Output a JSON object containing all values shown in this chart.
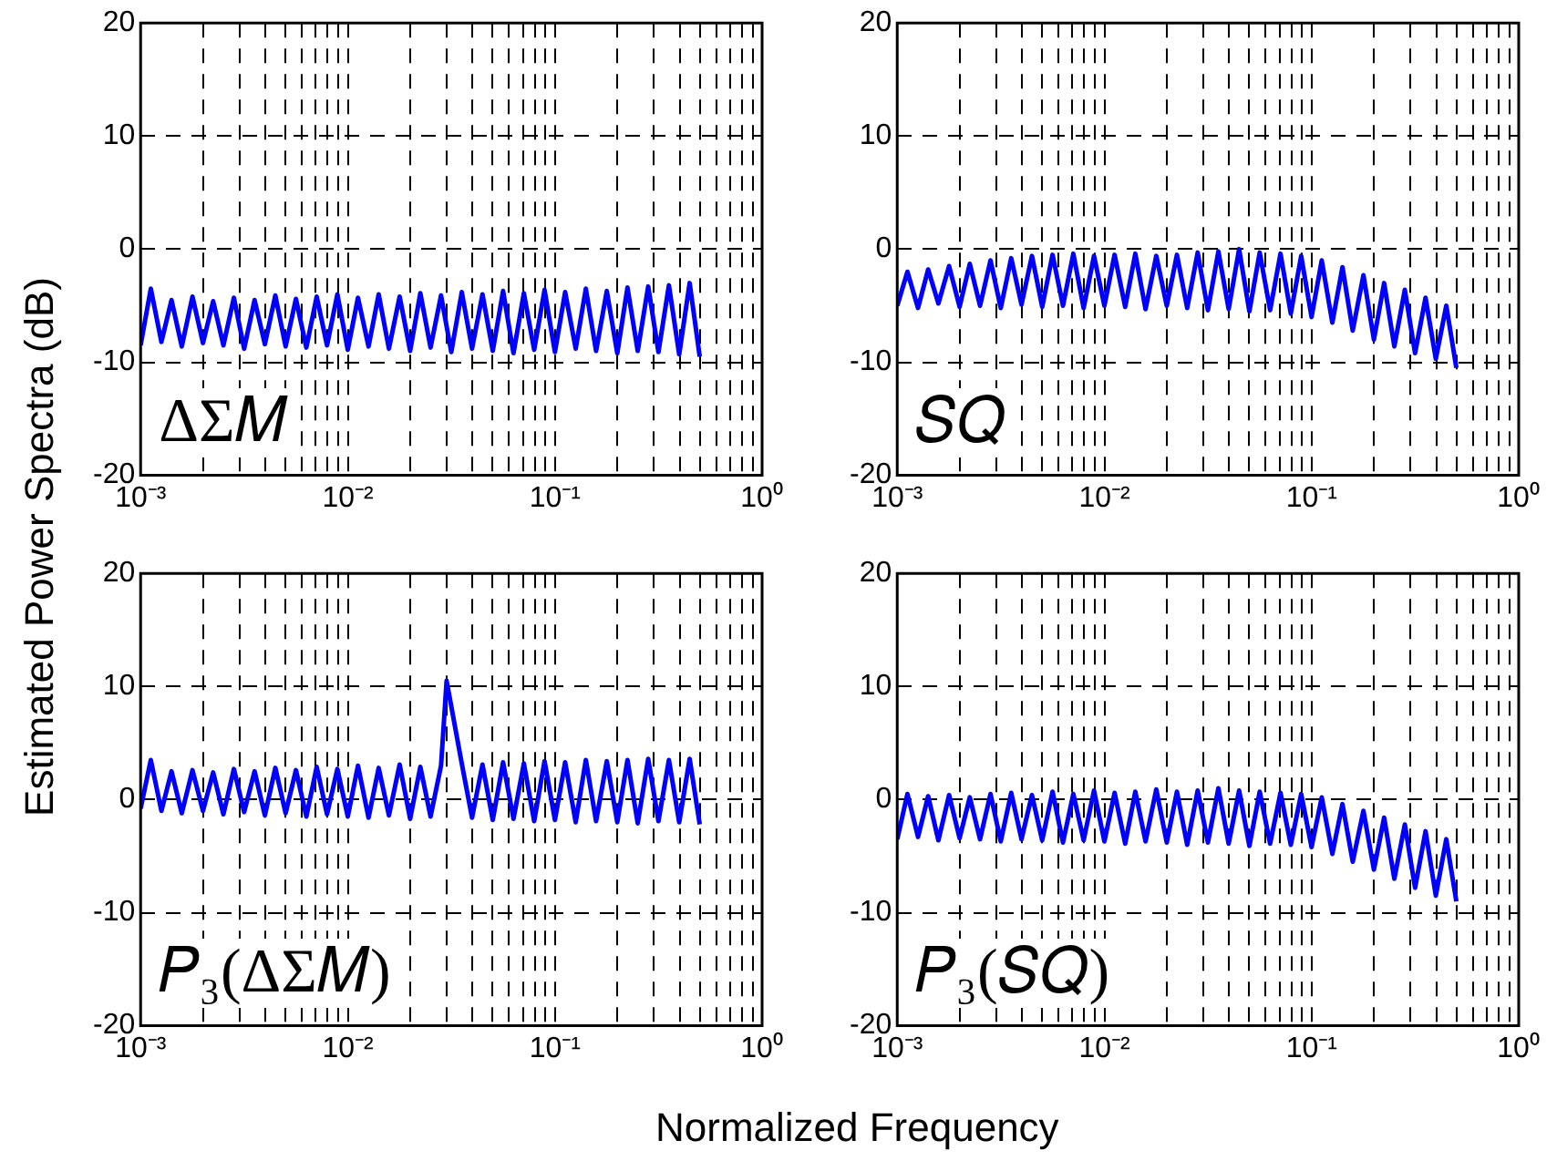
{
  "chart_data": [
    {
      "type": "line",
      "ylabel": "Estimated Power Spectra (dB)",
      "annotations": [
        "ΔΣ𝑀"
      ],
      "log": "x",
      "grid": true,
      "xlim": [
        0.001,
        1
      ],
      "ylim": [
        -20,
        20
      ],
      "xticks": [
        {
          "value": 0.001,
          "label": "10⁻³"
        },
        {
          "value": 0.002,
          "label": null
        },
        {
          "value": 0.003,
          "label": null
        },
        {
          "value": 0.004,
          "label": null
        },
        {
          "value": 0.005,
          "label": null
        },
        {
          "value": 0.006,
          "label": null
        },
        {
          "value": 0.007,
          "label": null
        },
        {
          "value": 0.008,
          "label": null
        },
        {
          "value": 0.009,
          "label": null
        },
        {
          "value": 0.01,
          "label": "10⁻²"
        },
        {
          "value": 0.02,
          "label": null
        },
        {
          "value": 0.03,
          "label": null
        },
        {
          "value": 0.04,
          "label": null
        },
        {
          "value": 0.05,
          "label": null
        },
        {
          "value": 0.06,
          "label": null
        },
        {
          "value": 0.07,
          "label": null
        },
        {
          "value": 0.08,
          "label": null
        },
        {
          "value": 0.09,
          "label": null
        },
        {
          "value": 0.1,
          "label": "10⁻¹"
        },
        {
          "value": 0.2,
          "label": null
        },
        {
          "value": 0.3,
          "label": null
        },
        {
          "value": 0.4,
          "label": null
        },
        {
          "value": 0.5,
          "label": null
        },
        {
          "value": 0.6,
          "label": null
        },
        {
          "value": 0.7,
          "label": null
        },
        {
          "value": 0.8,
          "label": null
        },
        {
          "value": 0.9,
          "label": null
        },
        {
          "value": 1,
          "label": "10⁰"
        }
      ],
      "yticks": [
        -20,
        -10,
        0,
        10,
        20
      ],
      "series": [
        {
          "color": "#0000ff",
          "x": [
            0.001,
            0.00112,
            0.00126,
            0.00141,
            0.00158,
            0.00178,
            0.002,
            0.00224,
            0.00251,
            0.00282,
            0.00316,
            0.00355,
            0.00398,
            0.00447,
            0.00501,
            0.00562,
            0.00631,
            0.00708,
            0.00794,
            0.00891,
            0.01,
            0.0112,
            0.0126,
            0.0141,
            0.0158,
            0.0178,
            0.02,
            0.0224,
            0.0251,
            0.0282,
            0.0316,
            0.0355,
            0.0398,
            0.0447,
            0.0501,
            0.0562,
            0.0631,
            0.0708,
            0.0794,
            0.0891,
            0.1,
            0.112,
            0.126,
            0.141,
            0.158,
            0.178,
            0.2,
            0.224,
            0.251,
            0.282,
            0.316,
            0.355,
            0.398,
            0.447,
            0.5
          ],
          "values": [
            -8.5,
            -3.5,
            -8.2,
            -4.5,
            -8.6,
            -4.2,
            -8.3,
            -4.6,
            -8.5,
            -4.3,
            -8.8,
            -4.5,
            -8.4,
            -4.1,
            -8.6,
            -4.4,
            -8.7,
            -4.2,
            -8.5,
            -4,
            -8.9,
            -4.3,
            -8.6,
            -4,
            -8.8,
            -4.2,
            -9,
            -3.9,
            -8.7,
            -4.1,
            -9.1,
            -3.8,
            -8.8,
            -4,
            -9,
            -3.7,
            -9.2,
            -3.9,
            -8.9,
            -3.6,
            -9.1,
            -3.8,
            -8.8,
            -3.5,
            -9,
            -3.7,
            -9.2,
            -3.4,
            -9,
            -3.3,
            -9.1,
            -3.2,
            -9.3,
            -3,
            -9.5
          ]
        }
      ]
    },
    {
      "type": "line",
      "annotations": [
        "𝑆𝑄"
      ],
      "log": "x",
      "grid": true,
      "xlim": [
        0.001,
        1
      ],
      "ylim": [
        -20,
        20
      ],
      "xticks": [
        {
          "value": 0.001,
          "label": "10⁻³"
        },
        {
          "value": 0.002,
          "label": null
        },
        {
          "value": 0.003,
          "label": null
        },
        {
          "value": 0.004,
          "label": null
        },
        {
          "value": 0.005,
          "label": null
        },
        {
          "value": 0.006,
          "label": null
        },
        {
          "value": 0.007,
          "label": null
        },
        {
          "value": 0.008,
          "label": null
        },
        {
          "value": 0.009,
          "label": null
        },
        {
          "value": 0.01,
          "label": "10⁻²"
        },
        {
          "value": 0.02,
          "label": null
        },
        {
          "value": 0.03,
          "label": null
        },
        {
          "value": 0.04,
          "label": null
        },
        {
          "value": 0.05,
          "label": null
        },
        {
          "value": 0.06,
          "label": null
        },
        {
          "value": 0.07,
          "label": null
        },
        {
          "value": 0.08,
          "label": null
        },
        {
          "value": 0.09,
          "label": null
        },
        {
          "value": 0.1,
          "label": "10⁻¹"
        },
        {
          "value": 0.2,
          "label": null
        },
        {
          "value": 0.3,
          "label": null
        },
        {
          "value": 0.4,
          "label": null
        },
        {
          "value": 0.5,
          "label": null
        },
        {
          "value": 0.6,
          "label": null
        },
        {
          "value": 0.7,
          "label": null
        },
        {
          "value": 0.8,
          "label": null
        },
        {
          "value": 0.9,
          "label": null
        },
        {
          "value": 1,
          "label": "10⁰"
        }
      ],
      "yticks": [
        -20,
        -10,
        0,
        10,
        20
      ],
      "series": [
        {
          "color": "#0000ff",
          "x": [
            0.001,
            0.00112,
            0.00126,
            0.00141,
            0.00158,
            0.00178,
            0.002,
            0.00224,
            0.00251,
            0.00282,
            0.00316,
            0.00355,
            0.00398,
            0.00447,
            0.00501,
            0.00562,
            0.00631,
            0.00708,
            0.00794,
            0.00891,
            0.01,
            0.0112,
            0.0126,
            0.0141,
            0.0158,
            0.0178,
            0.02,
            0.0224,
            0.0251,
            0.0282,
            0.0316,
            0.0355,
            0.0398,
            0.0447,
            0.0501,
            0.0562,
            0.0631,
            0.0708,
            0.0794,
            0.0891,
            0.1,
            0.112,
            0.126,
            0.141,
            0.158,
            0.178,
            0.2,
            0.224,
            0.251,
            0.282,
            0.316,
            0.355,
            0.398,
            0.447,
            0.5
          ],
          "values": [
            -5,
            -2,
            -5.2,
            -1.8,
            -4.8,
            -1.5,
            -5.1,
            -1.3,
            -5,
            -1,
            -5.2,
            -0.8,
            -4.9,
            -0.6,
            -5.1,
            -0.5,
            -5,
            -0.4,
            -5.2,
            -0.6,
            -5,
            -0.5,
            -5.1,
            -0.4,
            -5.3,
            -0.6,
            -5,
            -0.5,
            -5.2,
            -0.3,
            -5.4,
            -0.2,
            -5.3,
            0,
            -5.5,
            -0.3,
            -5.4,
            -0.4,
            -5.7,
            -0.6,
            -6,
            -1,
            -6.5,
            -1.6,
            -7.2,
            -2.3,
            -8,
            -3,
            -8.6,
            -3.6,
            -9.2,
            -4.3,
            -9.7,
            -5,
            -10.5
          ]
        }
      ]
    },
    {
      "type": "line",
      "xlabel": "Normalized Frequency",
      "annotations": [
        "𝑃₃(ΔΣ𝑀)"
      ],
      "log": "x",
      "grid": true,
      "xlim": [
        0.001,
        1
      ],
      "ylim": [
        -20,
        20
      ],
      "xticks": [
        {
          "value": 0.001,
          "label": "10⁻³"
        },
        {
          "value": 0.002,
          "label": null
        },
        {
          "value": 0.003,
          "label": null
        },
        {
          "value": 0.004,
          "label": null
        },
        {
          "value": 0.005,
          "label": null
        },
        {
          "value": 0.006,
          "label": null
        },
        {
          "value": 0.007,
          "label": null
        },
        {
          "value": 0.008,
          "label": null
        },
        {
          "value": 0.009,
          "label": null
        },
        {
          "value": 0.01,
          "label": "10⁻²"
        },
        {
          "value": 0.02,
          "label": null
        },
        {
          "value": 0.03,
          "label": null
        },
        {
          "value": 0.04,
          "label": null
        },
        {
          "value": 0.05,
          "label": null
        },
        {
          "value": 0.06,
          "label": null
        },
        {
          "value": 0.07,
          "label": null
        },
        {
          "value": 0.08,
          "label": null
        },
        {
          "value": 0.09,
          "label": null
        },
        {
          "value": 0.1,
          "label": "10⁻¹"
        },
        {
          "value": 0.2,
          "label": null
        },
        {
          "value": 0.3,
          "label": null
        },
        {
          "value": 0.4,
          "label": null
        },
        {
          "value": 0.5,
          "label": null
        },
        {
          "value": 0.6,
          "label": null
        },
        {
          "value": 0.7,
          "label": null
        },
        {
          "value": 0.8,
          "label": null
        },
        {
          "value": 0.9,
          "label": null
        },
        {
          "value": 1,
          "label": "10⁰"
        }
      ],
      "yticks": [
        -20,
        -10,
        0,
        10,
        20
      ],
      "series": [
        {
          "color": "#0000ff",
          "x": [
            0.001,
            0.00112,
            0.00126,
            0.00141,
            0.00158,
            0.00178,
            0.002,
            0.00224,
            0.00251,
            0.00282,
            0.00316,
            0.00355,
            0.00398,
            0.00447,
            0.00501,
            0.00562,
            0.00631,
            0.00708,
            0.00794,
            0.00891,
            0.01,
            0.0112,
            0.0126,
            0.0141,
            0.0158,
            0.0178,
            0.02,
            0.0224,
            0.0251,
            0.0282,
            0.03,
            0.0355,
            0.0398,
            0.0447,
            0.0501,
            0.0562,
            0.0631,
            0.0708,
            0.0794,
            0.0891,
            0.1,
            0.112,
            0.126,
            0.141,
            0.158,
            0.178,
            0.2,
            0.224,
            0.251,
            0.282,
            0.316,
            0.355,
            0.398,
            0.447,
            0.5
          ],
          "values": [
            -0.8,
            3.5,
            -1,
            2.5,
            -1.2,
            2.6,
            -1,
            2.4,
            -1.3,
            2.7,
            -1.1,
            2.5,
            -1.4,
            2.8,
            -1.2,
            2.6,
            -1.5,
            2.9,
            -1.3,
            2.7,
            -1.5,
            3,
            -1.6,
            2.8,
            -1.4,
            3.1,
            -1.7,
            2.9,
            -1.5,
            3,
            10.5,
            3.2,
            -1.6,
            3.1,
            -1.8,
            3.3,
            -1.7,
            3.2,
            -1.9,
            3.4,
            -1.8,
            3.3,
            -2,
            3.5,
            -1.9,
            3.4,
            -2,
            3.5,
            -2.1,
            3.6,
            -1.9,
            3.5,
            -2,
            3.6,
            -2.2
          ]
        }
      ]
    },
    {
      "type": "line",
      "annotations": [
        "𝑃₃(𝑆𝑄)"
      ],
      "log": "x",
      "grid": true,
      "xlim": [
        0.001,
        1
      ],
      "ylim": [
        -20,
        20
      ],
      "xticks": [
        {
          "value": 0.001,
          "label": "10⁻³"
        },
        {
          "value": 0.002,
          "label": null
        },
        {
          "value": 0.003,
          "label": null
        },
        {
          "value": 0.004,
          "label": null
        },
        {
          "value": 0.005,
          "label": null
        },
        {
          "value": 0.006,
          "label": null
        },
        {
          "value": 0.007,
          "label": null
        },
        {
          "value": 0.008,
          "label": null
        },
        {
          "value": 0.009,
          "label": null
        },
        {
          "value": 0.01,
          "label": "10⁻²"
        },
        {
          "value": 0.02,
          "label": null
        },
        {
          "value": 0.03,
          "label": null
        },
        {
          "value": 0.04,
          "label": null
        },
        {
          "value": 0.05,
          "label": null
        },
        {
          "value": 0.06,
          "label": null
        },
        {
          "value": 0.07,
          "label": null
        },
        {
          "value": 0.08,
          "label": null
        },
        {
          "value": 0.09,
          "label": null
        },
        {
          "value": 0.1,
          "label": "10⁻¹"
        },
        {
          "value": 0.2,
          "label": null
        },
        {
          "value": 0.3,
          "label": null
        },
        {
          "value": 0.4,
          "label": null
        },
        {
          "value": 0.5,
          "label": null
        },
        {
          "value": 0.6,
          "label": null
        },
        {
          "value": 0.7,
          "label": null
        },
        {
          "value": 0.8,
          "label": null
        },
        {
          "value": 0.9,
          "label": null
        },
        {
          "value": 1,
          "label": "10⁰"
        }
      ],
      "yticks": [
        -20,
        -10,
        0,
        10,
        20
      ],
      "series": [
        {
          "color": "#0000ff",
          "x": [
            0.001,
            0.00112,
            0.00126,
            0.00141,
            0.00158,
            0.00178,
            0.002,
            0.00224,
            0.00251,
            0.00282,
            0.00316,
            0.00355,
            0.00398,
            0.00447,
            0.00501,
            0.00562,
            0.00631,
            0.00708,
            0.00794,
            0.00891,
            0.01,
            0.0112,
            0.0126,
            0.0141,
            0.0158,
            0.0178,
            0.02,
            0.0224,
            0.0251,
            0.0282,
            0.0316,
            0.0355,
            0.0398,
            0.0447,
            0.0501,
            0.0562,
            0.0631,
            0.0708,
            0.0794,
            0.0891,
            0.1,
            0.112,
            0.126,
            0.141,
            0.158,
            0.178,
            0.2,
            0.224,
            0.251,
            0.282,
            0.316,
            0.355,
            0.398,
            0.447,
            0.5
          ],
          "values": [
            -3.5,
            0.5,
            -3.3,
            0.3,
            -3.6,
            0.4,
            -3.4,
            0.2,
            -3.5,
            0.5,
            -3.7,
            0.6,
            -3.5,
            0.4,
            -3.6,
            0.7,
            -3.8,
            0.5,
            -3.6,
            0.8,
            -3.7,
            0.6,
            -3.9,
            0.7,
            -3.7,
            0.9,
            -3.8,
            0.7,
            -4,
            0.8,
            -3.8,
            1,
            -3.9,
            0.8,
            -4.1,
            0.7,
            -3.9,
            0.6,
            -4,
            0.5,
            -4.2,
            0.2,
            -4.8,
            -0.4,
            -5.5,
            -1,
            -6.2,
            -1.6,
            -7,
            -2.2,
            -7.8,
            -2.8,
            -8.5,
            -3.5,
            -9
          ]
        }
      ]
    }
  ]
}
